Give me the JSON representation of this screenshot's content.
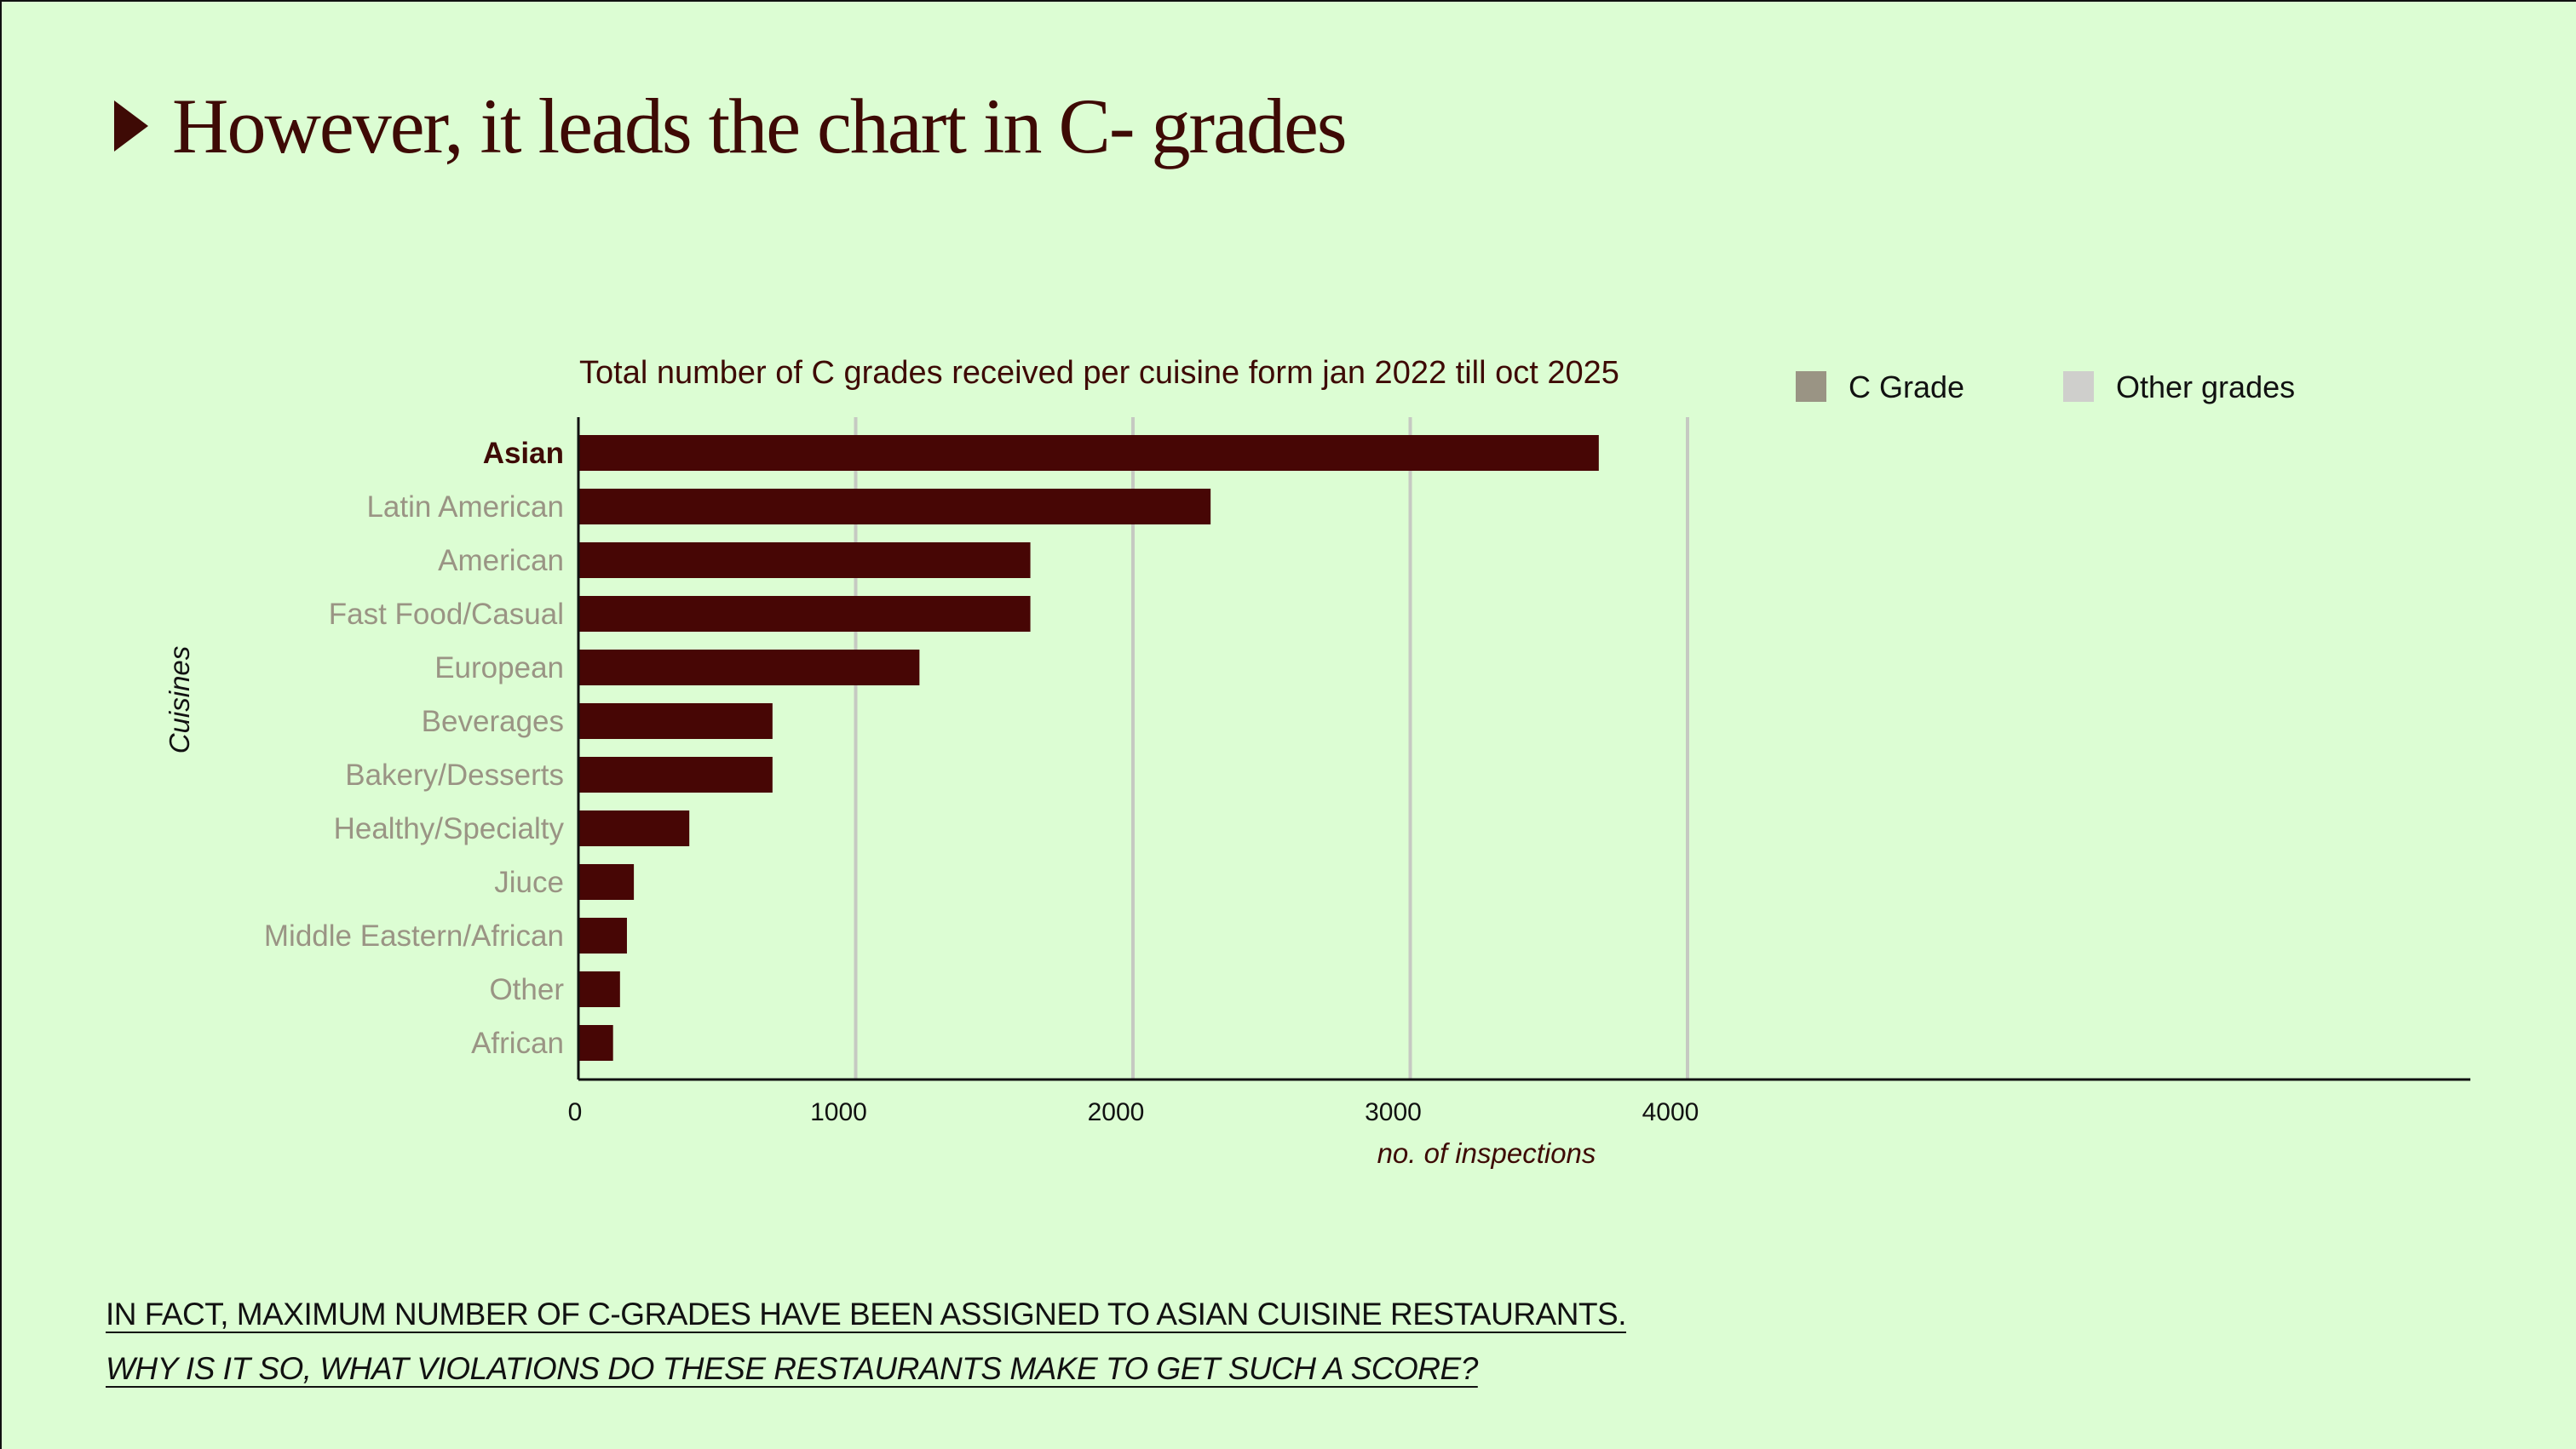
{
  "slide": {
    "heading": "However, it leads the chart in C- grades",
    "footer_line1": "IN FACT, MAXIMUM NUMBER OF C-GRADES HAVE BEEN ASSIGNED TO ASIAN CUISINE RESTAURANTS. ",
    "footer_line2": "WHY IS IT SO, WHAT VIOLATIONS DO THESE RESTAURANTS MAKE TO GET SUCH A SCORE?"
  },
  "colors": {
    "background": "#dcfdd3",
    "bar": "#470605",
    "heading": "#3e0a05",
    "highlight_label": "#3e0a05",
    "muted_label": "#9a9484",
    "legend_c_grade": "#9a9484",
    "legend_other": "#cfcfcc",
    "grid": "#c6c9c2"
  },
  "chart_data": {
    "type": "bar",
    "orientation": "horizontal",
    "title": "Total number of C grades received per cuisine form jan 2022 till oct 2025",
    "xlabel": "no. of inspections",
    "ylabel": "Cuisines",
    "categories": [
      "Asian",
      "Latin American",
      "American",
      "Fast Food/Casual",
      "European",
      "Beverages",
      "Bakery/Desserts",
      "Healthy/Specialty",
      "Jiuce",
      "Middle Eastern/African",
      "Other",
      "African"
    ],
    "highlighted_category": "Asian",
    "series": [
      {
        "name": "C Grade",
        "values": [
          3680,
          2280,
          1630,
          1630,
          1230,
          700,
          700,
          400,
          200,
          175,
          150,
          125
        ]
      }
    ],
    "legend": [
      "C Grade",
      "Other grades"
    ],
    "legend_position": "top-right",
    "xticks": [
      0,
      1000,
      2000,
      3000,
      4000
    ],
    "xlim": [
      0,
      4000
    ],
    "grid": "vertical"
  }
}
